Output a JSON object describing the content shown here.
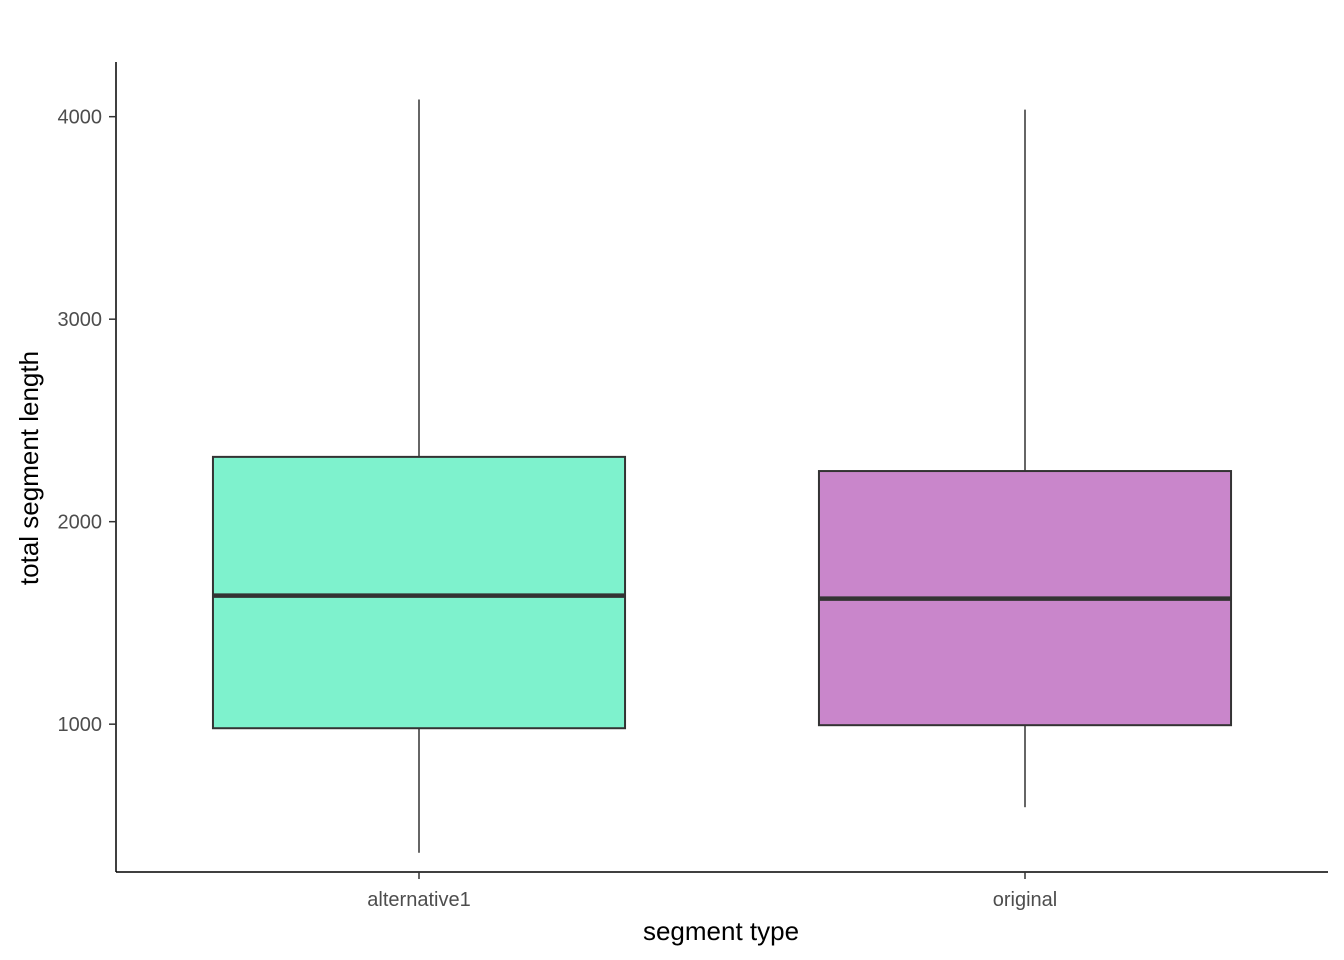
{
  "chart_data": {
    "type": "boxplot",
    "title": "",
    "xlabel": "segment type",
    "ylabel": "total segment length",
    "ylim": [
      270,
      4270
    ],
    "yticks": [
      1000,
      2000,
      3000,
      4000
    ],
    "yticklabels": [
      "1000",
      "2000",
      "3000",
      "4000"
    ],
    "grid": false,
    "legend": "none",
    "box_stroke_color": "#333333",
    "categories": [
      "alternative1",
      "original"
    ],
    "boxes": [
      {
        "category": "alternative1",
        "min": 365,
        "q1": 980,
        "median": 1635,
        "q3": 2320,
        "max": 4085,
        "fill": "#7ef2cd"
      },
      {
        "category": "original",
        "min": 590,
        "q1": 995,
        "median": 1620,
        "q3": 2250,
        "max": 4035,
        "fill": "#c986cb"
      }
    ]
  }
}
